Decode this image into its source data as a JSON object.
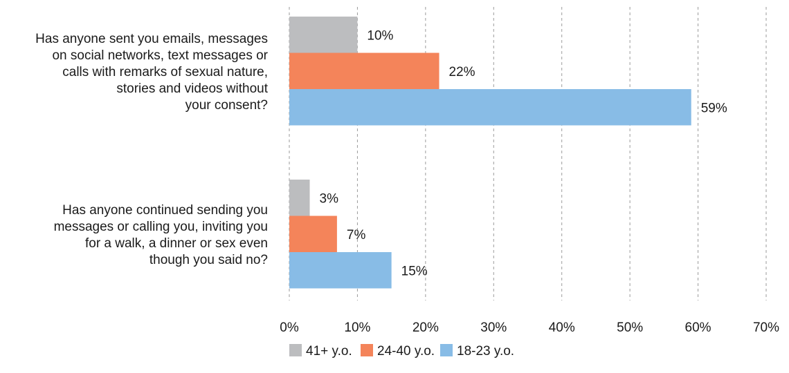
{
  "chart_data": {
    "type": "bar",
    "orientation": "horizontal",
    "categories": [
      {
        "lines": [
          "Has anyone sent you emails, messages",
          "on social networks, text messages or",
          "calls with remarks of sexual nature,",
          "stories and videos without",
          "your consent?"
        ]
      },
      {
        "lines": [
          "Has anyone continued sending you",
          "messages or calling you, inviting you",
          "for a walk, a dinner or sex even",
          "though you said no?"
        ]
      }
    ],
    "series": [
      {
        "name": "41+ y.o.",
        "color": "#bcbdbf",
        "values": [
          10,
          3
        ],
        "labels": [
          "10%",
          "3%"
        ]
      },
      {
        "name": "24-40 y.o.",
        "color": "#f4845a",
        "values": [
          22,
          7
        ],
        "labels": [
          "22%",
          "7%"
        ]
      },
      {
        "name": "18-23 y.o.",
        "color": "#88bce6",
        "values": [
          59,
          15
        ],
        "labels": [
          "59%",
          "15%"
        ]
      }
    ],
    "xlim": [
      0,
      70
    ],
    "x_ticks": [
      "0%",
      "10%",
      "20%",
      "30%",
      "40%",
      "50%",
      "60%",
      "70%"
    ],
    "grid": true,
    "legend_position": "bottom"
  }
}
